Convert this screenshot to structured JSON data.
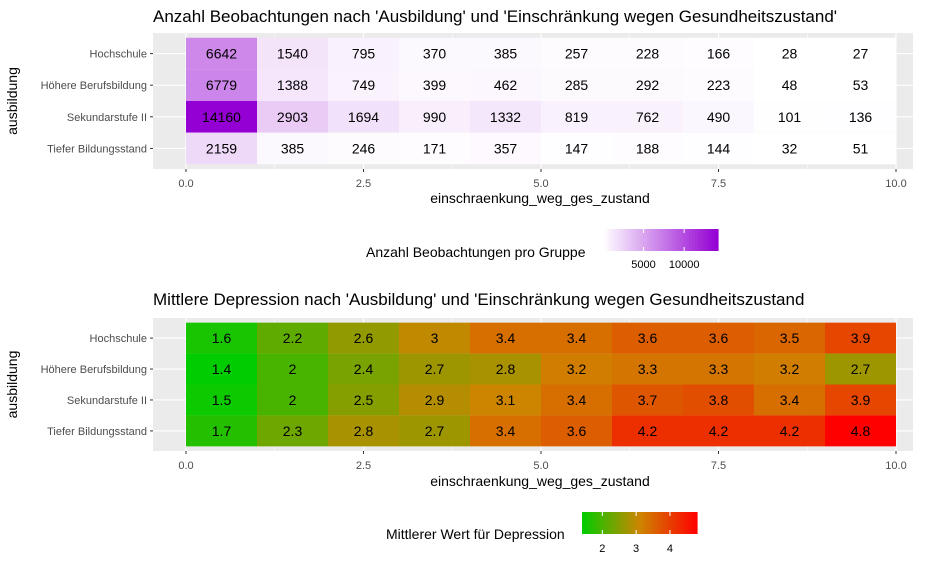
{
  "chart_data": [
    {
      "type": "heatmap",
      "title": "Anzahl Beobachtungen nach 'Ausbildung' und 'Einschränkung wegen Gesundheitszustand'",
      "xlabel": "einschraenkung_weg_ges_zustand",
      "ylabel": "ausbildung",
      "x": [
        0,
        1,
        2,
        3,
        4,
        5,
        6,
        7,
        8,
        9
      ],
      "xlim": [
        0,
        10
      ],
      "x_ticks": [
        "0.0",
        "2.5",
        "5.0",
        "7.5",
        "10.0"
      ],
      "x_tick_values": [
        0,
        2.5,
        5,
        7.5,
        10
      ],
      "y_categories": [
        "Hochschule",
        "Höhere Berufsbildung",
        "Sekundarstufe II",
        "Tiefer Bildungsstand"
      ],
      "values": [
        [
          6642,
          1540,
          795,
          370,
          385,
          257,
          228,
          166,
          28,
          27
        ],
        [
          6779,
          1388,
          749,
          399,
          462,
          285,
          292,
          223,
          48,
          53
        ],
        [
          14160,
          2903,
          1694,
          990,
          1332,
          819,
          762,
          490,
          101,
          136
        ],
        [
          2159,
          385,
          246,
          171,
          357,
          147,
          188,
          144,
          32,
          51
        ]
      ],
      "value_labels": [
        [
          "6642",
          "1540",
          "795",
          "370",
          "385",
          "257",
          "228",
          "166",
          "28",
          "27"
        ],
        [
          "6779",
          "1388",
          "749",
          "399",
          "462",
          "285",
          "292",
          "223",
          "48",
          "53"
        ],
        [
          "14160",
          "2903",
          "1694",
          "990",
          "1332",
          "819",
          "762",
          "490",
          "101",
          "136"
        ],
        [
          "2159",
          "385",
          "246",
          "171",
          "357",
          "147",
          "188",
          "144",
          "32",
          "51"
        ]
      ],
      "color_low": "#ffffff",
      "color_high": "#9400d3",
      "legend": {
        "title": "Anzahl Beobachtungen pro Gruppe",
        "position": "bottom",
        "ticks": [
          "5000",
          "10000"
        ],
        "tick_values": [
          5000,
          10000
        ],
        "range": [
          27,
          14160
        ]
      },
      "grid": true
    },
    {
      "type": "heatmap",
      "title": "Mittlere Depression nach 'Ausbildung' und 'Einschränkung wegen Gesundheitszustand",
      "xlabel": "einschraenkung_weg_ges_zustand",
      "ylabel": "ausbildung",
      "x": [
        0,
        1,
        2,
        3,
        4,
        5,
        6,
        7,
        8,
        9
      ],
      "xlim": [
        0,
        10
      ],
      "x_ticks": [
        "0.0",
        "2.5",
        "5.0",
        "7.5",
        "10.0"
      ],
      "x_tick_values": [
        0,
        2.5,
        5,
        7.5,
        10
      ],
      "y_categories": [
        "Hochschule",
        "Höhere Berufsbildung",
        "Sekundarstufe II",
        "Tiefer Bildungsstand"
      ],
      "values": [
        [
          1.6,
          2.2,
          2.6,
          3,
          3.4,
          3.4,
          3.6,
          3.6,
          3.5,
          3.9
        ],
        [
          1.4,
          2,
          2.4,
          2.7,
          2.8,
          3.2,
          3.3,
          3.3,
          3.2,
          2.7
        ],
        [
          1.5,
          2,
          2.5,
          2.9,
          3.1,
          3.4,
          3.7,
          3.8,
          3.4,
          3.9
        ],
        [
          1.7,
          2.3,
          2.8,
          2.7,
          3.4,
          3.6,
          4.2,
          4.2,
          4.2,
          4.8
        ]
      ],
      "value_labels": [
        [
          "1.6",
          "2.2",
          "2.6",
          "3",
          "3.4",
          "3.4",
          "3.6",
          "3.6",
          "3.5",
          "3.9"
        ],
        [
          "1.4",
          "2",
          "2.4",
          "2.7",
          "2.8",
          "3.2",
          "3.3",
          "3.3",
          "3.2",
          "2.7"
        ],
        [
          "1.5",
          "2",
          "2.5",
          "2.9",
          "3.1",
          "3.4",
          "3.7",
          "3.8",
          "3.4",
          "3.9"
        ],
        [
          "1.7",
          "2.3",
          "2.8",
          "2.7",
          "3.4",
          "3.6",
          "4.2",
          "4.2",
          "4.2",
          "4.8"
        ]
      ],
      "color_low": "#00cd00",
      "color_mid": "#cd8500",
      "color_high": "#ff0000",
      "legend": {
        "title": "Mittlerer Wert für Depression",
        "position": "bottom",
        "ticks": [
          "2",
          "3",
          "4"
        ],
        "tick_values": [
          2,
          3,
          4
        ],
        "range": [
          1.4,
          4.8
        ]
      },
      "grid": true
    }
  ]
}
